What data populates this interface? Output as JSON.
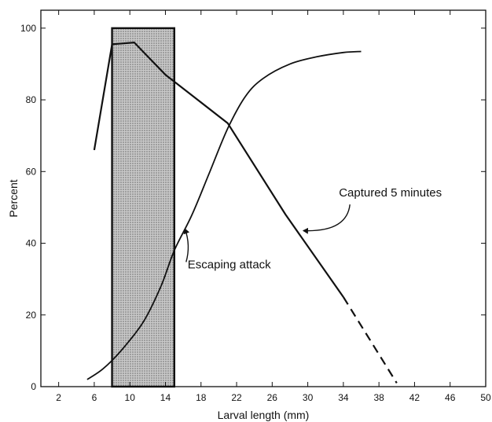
{
  "chart_data": {
    "type": "line",
    "xlabel": "Larval length (mm)",
    "ylabel": "Percent",
    "xlim": [
      0,
      50
    ],
    "ylim": [
      0,
      105
    ],
    "xticks": [
      2,
      6,
      10,
      14,
      18,
      22,
      26,
      30,
      34,
      38,
      42,
      46,
      50
    ],
    "yticks": [
      0,
      20,
      40,
      60,
      80,
      100
    ],
    "grid": false,
    "shaded_band": {
      "x_start": 8,
      "x_end": 15,
      "y_top": 100
    },
    "series": [
      {
        "name": "Captured 5 minutes",
        "style": "solid-then-dashed",
        "dashed_from_x": 34,
        "points": [
          [
            6,
            66
          ],
          [
            8,
            95.5
          ],
          [
            10.5,
            96
          ],
          [
            14,
            87
          ],
          [
            21,
            73.5
          ],
          [
            27.5,
            48
          ],
          [
            34,
            25
          ],
          [
            40,
            1
          ]
        ]
      },
      {
        "name": "Escaping attack",
        "style": "solid",
        "points": [
          [
            5.2,
            2
          ],
          [
            7,
            5
          ],
          [
            9,
            10
          ],
          [
            11.5,
            18
          ],
          [
            13.5,
            28
          ],
          [
            15,
            38
          ],
          [
            17,
            48
          ],
          [
            19,
            60
          ],
          [
            21,
            72
          ],
          [
            23,
            81
          ],
          [
            25,
            86
          ],
          [
            28,
            90
          ],
          [
            31,
            92
          ],
          [
            34,
            93.2
          ],
          [
            36,
            93.5
          ]
        ]
      }
    ],
    "annotations": [
      {
        "text": "Captured 5 minutes",
        "x": 33.5,
        "y": 53,
        "arrow_to": [
          29.5,
          43.5
        ]
      },
      {
        "text": "Escaping attack",
        "x": 16.5,
        "y": 33,
        "arrow_to": [
          16.2,
          44
        ]
      }
    ]
  }
}
